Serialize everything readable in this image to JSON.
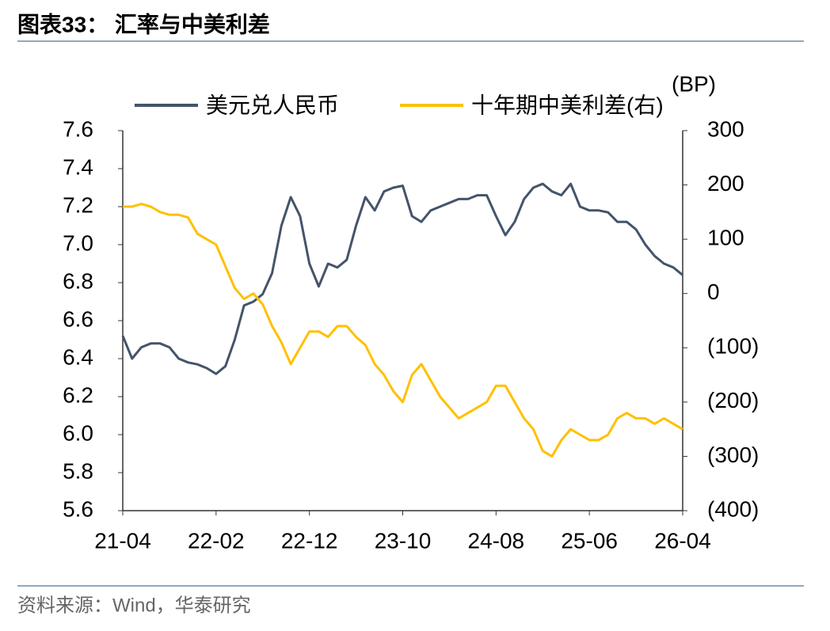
{
  "chart_data": {
    "type": "line",
    "title": "图表33：  汇率与中美利差",
    "y2_label": "(BP)",
    "source": "资料来源：Wind，华泰研究",
    "x": [
      "21-04",
      "21-05",
      "21-06",
      "21-07",
      "21-08",
      "21-09",
      "21-10",
      "21-11",
      "21-12",
      "22-01",
      "22-02",
      "22-03",
      "22-04",
      "22-05",
      "22-06",
      "22-07",
      "22-08",
      "22-09",
      "22-10",
      "22-11",
      "22-12",
      "23-01",
      "23-02",
      "23-03",
      "23-04",
      "23-05",
      "23-06",
      "23-07",
      "23-08",
      "23-09",
      "23-10",
      "23-11",
      "23-12",
      "24-01",
      "24-02",
      "24-03",
      "24-04",
      "24-05",
      "24-06",
      "24-07",
      "24-08",
      "24-09",
      "24-10",
      "24-11",
      "24-12",
      "25-01",
      "25-02",
      "25-03",
      "25-04",
      "25-05",
      "25-06",
      "25-07",
      "25-08",
      "25-09",
      "25-10",
      "25-11",
      "25-12",
      "26-01",
      "26-02",
      "26-03",
      "26-04"
    ],
    "xticks": [
      "21-04",
      "22-02",
      "22-12",
      "23-10",
      "24-08",
      "25-06",
      "26-04"
    ],
    "ylim": [
      5.6,
      7.6
    ],
    "yticks": [
      5.6,
      5.8,
      {
        "value": 6,
        "label": "6.0"
      },
      6.2,
      6.4,
      6.6,
      6.8,
      {
        "value": 7,
        "label": "7.0"
      },
      7.2,
      7.4,
      7.6
    ],
    "y2lim": [
      -400,
      300
    ],
    "y2ticks": [
      {
        "value": -400,
        "label": "(400)"
      },
      {
        "value": -300,
        "label": "(300)"
      },
      {
        "value": -200,
        "label": "(200)"
      },
      {
        "value": -100,
        "label": "(100)"
      },
      0,
      100,
      200,
      300
    ],
    "series": [
      {
        "name": "美元兑人民币",
        "color": "#44546a",
        "values": [
          6.52,
          6.4,
          6.46,
          6.48,
          6.48,
          6.46,
          6.4,
          6.38,
          6.37,
          6.35,
          6.32,
          6.36,
          6.5,
          6.68,
          6.7,
          6.74,
          6.85,
          7.1,
          7.25,
          7.15,
          6.9,
          6.78,
          6.9,
          6.88,
          6.92,
          7.1,
          7.25,
          7.18,
          7.28,
          7.3,
          7.31,
          7.15,
          7.12,
          7.18,
          7.2,
          7.22,
          7.24,
          7.24,
          7.26,
          7.26,
          7.15,
          7.05,
          7.12,
          7.24,
          7.3,
          7.32,
          7.28,
          7.26,
          7.32,
          7.2,
          7.18,
          7.18,
          7.17,
          7.12,
          7.12,
          7.08,
          7.0,
          6.94,
          6.9,
          6.88,
          6.84
        ]
      },
      {
        "name": "十年期中美利差(右)",
        "color": "#ffc000",
        "axis": "y2",
        "values": [
          160,
          160,
          165,
          160,
          150,
          145,
          145,
          140,
          110,
          100,
          90,
          50,
          10,
          -10,
          0,
          -20,
          -60,
          -90,
          -130,
          -100,
          -70,
          -70,
          -80,
          -60,
          -60,
          -80,
          -95,
          -130,
          -150,
          -180,
          -200,
          -150,
          -130,
          -160,
          -190,
          -210,
          -230,
          -220,
          -210,
          -200,
          -170,
          -170,
          -200,
          -230,
          -250,
          -290,
          -300,
          -270,
          -250,
          -260,
          -270,
          -270,
          -260,
          -230,
          -220,
          -230,
          -230,
          -240,
          -230,
          -240,
          -250
        ]
      }
    ]
  }
}
